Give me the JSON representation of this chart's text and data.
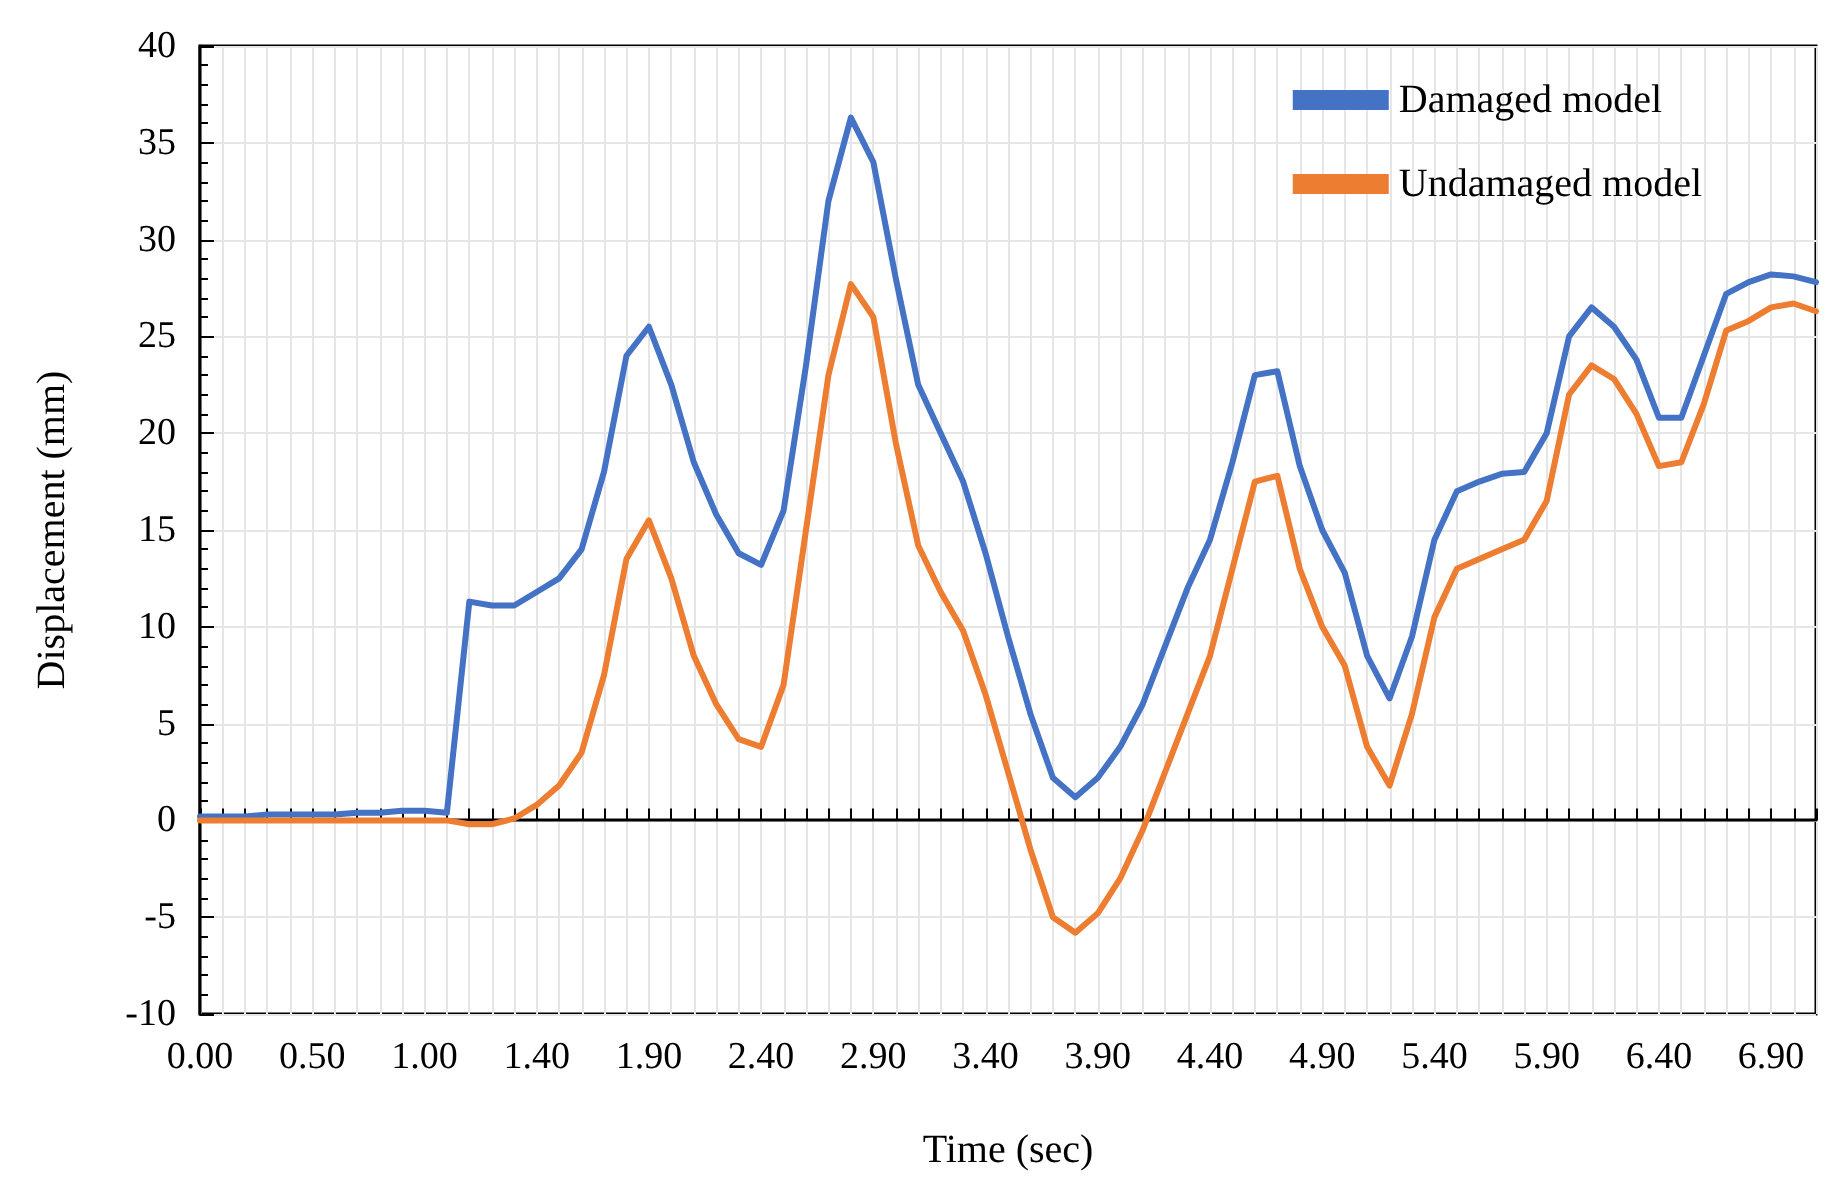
{
  "chart_data": {
    "type": "line",
    "xlabel": "Time (sec)",
    "ylabel": "Displacement (mm)",
    "categories": [
      "0.00",
      null,
      null,
      null,
      null,
      "0.50",
      null,
      null,
      null,
      null,
      "1.00",
      null,
      null,
      null,
      null,
      "1.40",
      null,
      null,
      null,
      null,
      "1.90",
      null,
      null,
      null,
      null,
      "2.40",
      null,
      null,
      null,
      null,
      "2.90",
      null,
      null,
      null,
      null,
      "3.40",
      null,
      null,
      null,
      null,
      "3.90",
      null,
      null,
      null,
      null,
      "4.40",
      null,
      null,
      null,
      null,
      "4.90",
      null,
      null,
      null,
      null,
      "5.40",
      null,
      null,
      null,
      null,
      "5.90",
      null,
      null,
      null,
      null,
      "6.40",
      null,
      null,
      null,
      null,
      "6.90",
      null,
      null
    ],
    "series": [
      {
        "name": "Damaged model",
        "color": "#4472c4",
        "values": [
          0.2,
          0.2,
          0.2,
          0.3,
          0.3,
          0.3,
          0.3,
          0.4,
          0.4,
          0.5,
          0.5,
          0.4,
          11.3,
          11.1,
          11.1,
          11.8,
          12.5,
          14,
          18,
          24,
          25.5,
          22.5,
          18.5,
          15.8,
          13.8,
          13.2,
          16,
          23.5,
          32,
          36.3,
          34,
          28,
          22.5,
          20,
          17.5,
          13.8,
          9.5,
          5.5,
          2.2,
          1.2,
          2.2,
          3.8,
          6,
          9,
          12,
          14.5,
          18.5,
          23,
          23.2,
          18.3,
          15,
          12.8,
          8.5,
          6.3,
          9.5,
          14.5,
          17,
          17.5,
          17.9,
          18,
          20,
          25,
          26.5,
          25.5,
          23.8,
          20.8,
          20.8,
          24,
          27.2,
          27.8,
          28.2,
          28.1,
          27.8
        ]
      },
      {
        "name": "Undamaged model",
        "color": "#ed7d31",
        "values": [
          0,
          0,
          0,
          0,
          0,
          0,
          0,
          0,
          0,
          0,
          0,
          0,
          -0.2,
          -0.2,
          0.1,
          0.8,
          1.8,
          3.5,
          7.5,
          13.5,
          15.5,
          12.5,
          8.5,
          6,
          4.2,
          3.8,
          7,
          15,
          23,
          27.7,
          26,
          19.5,
          14.2,
          11.8,
          9.8,
          6.5,
          2.5,
          -1.5,
          -5,
          -5.8,
          -4.8,
          -3,
          -0.5,
          2.5,
          5.5,
          8.5,
          13,
          17.5,
          17.8,
          13,
          10,
          8,
          3.8,
          1.8,
          5.5,
          10.5,
          13,
          13.5,
          14,
          14.5,
          16.5,
          22,
          23.5,
          22.8,
          21,
          18.3,
          18.5,
          21.5,
          25.3,
          25.8,
          26.5,
          26.7,
          26.3
        ]
      }
    ],
    "ylim": [
      -10,
      40
    ],
    "yticks": [
      -10,
      -5,
      0,
      5,
      10,
      15,
      20,
      25,
      30,
      35,
      40
    ],
    "grid": true,
    "legend": "top right",
    "marker": "none",
    "line_style": "solid"
  }
}
